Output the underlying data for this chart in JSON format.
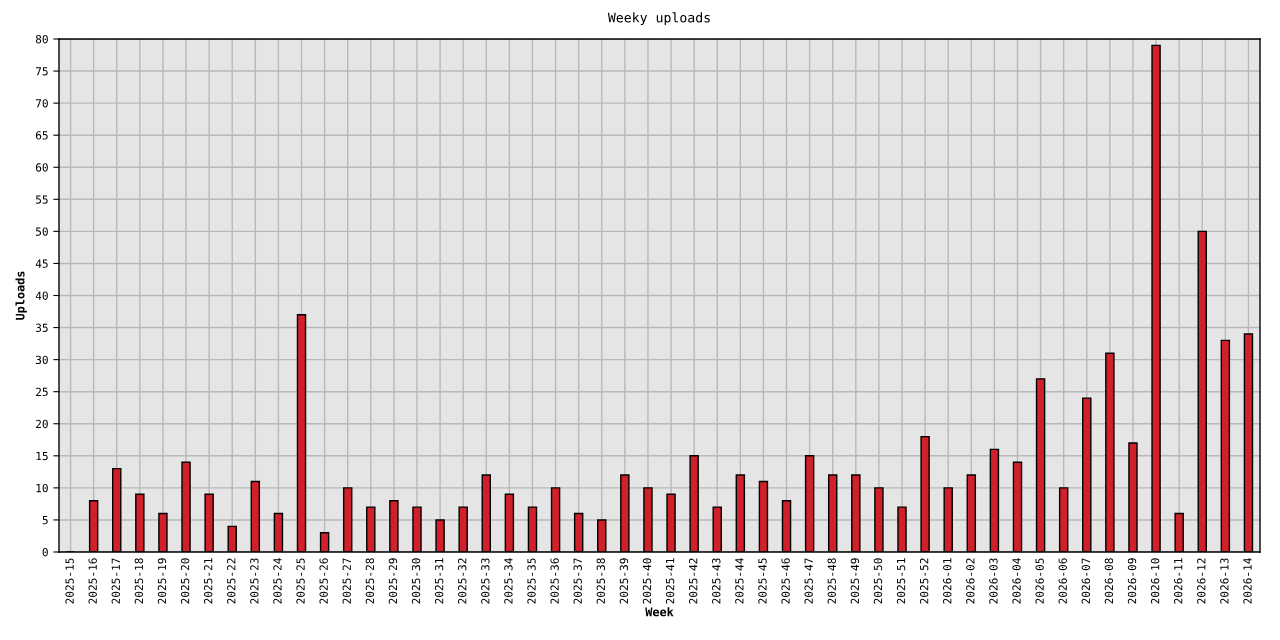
{
  "chart_data": {
    "type": "bar",
    "title": "Weeky uploads",
    "xlabel": "Week",
    "ylabel": "Uploads",
    "categories": [
      "2025-15",
      "2025-16",
      "2025-17",
      "2025-18",
      "2025-19",
      "2025-20",
      "2025-21",
      "2025-22",
      "2025-23",
      "2025-24",
      "2025-25",
      "2025-26",
      "2025-27",
      "2025-28",
      "2025-29",
      "2025-30",
      "2025-31",
      "2025-32",
      "2025-33",
      "2025-34",
      "2025-35",
      "2025-36",
      "2025-37",
      "2025-38",
      "2025-39",
      "2025-40",
      "2025-41",
      "2025-42",
      "2025-43",
      "2025-44",
      "2025-45",
      "2025-46",
      "2025-47",
      "2025-48",
      "2025-49",
      "2025-50",
      "2025-51",
      "2025-52",
      "2026-01",
      "2026-02",
      "2026-03",
      "2026-04",
      "2026-05",
      "2026-06",
      "2026-07",
      "2026-08",
      "2026-09",
      "2026-10",
      "2026-11",
      "2026-12",
      "2026-13",
      "2026-14"
    ],
    "values": [
      0,
      8,
      13,
      9,
      6,
      14,
      9,
      4,
      11,
      6,
      37,
      3,
      10,
      7,
      8,
      7,
      5,
      7,
      12,
      9,
      7,
      10,
      6,
      5,
      12,
      10,
      9,
      15,
      7,
      12,
      11,
      8,
      15,
      12,
      12,
      10,
      7,
      18,
      10,
      12,
      16,
      14,
      27,
      10,
      24,
      31,
      17,
      79,
      6,
      50,
      33,
      34
    ],
    "color": "#d0202a",
    "ylim": [
      0,
      80
    ],
    "yticks": [
      0,
      5,
      10,
      15,
      20,
      25,
      30,
      35,
      40,
      45,
      50,
      55,
      60,
      65,
      70,
      75,
      80
    ],
    "grid": true
  }
}
